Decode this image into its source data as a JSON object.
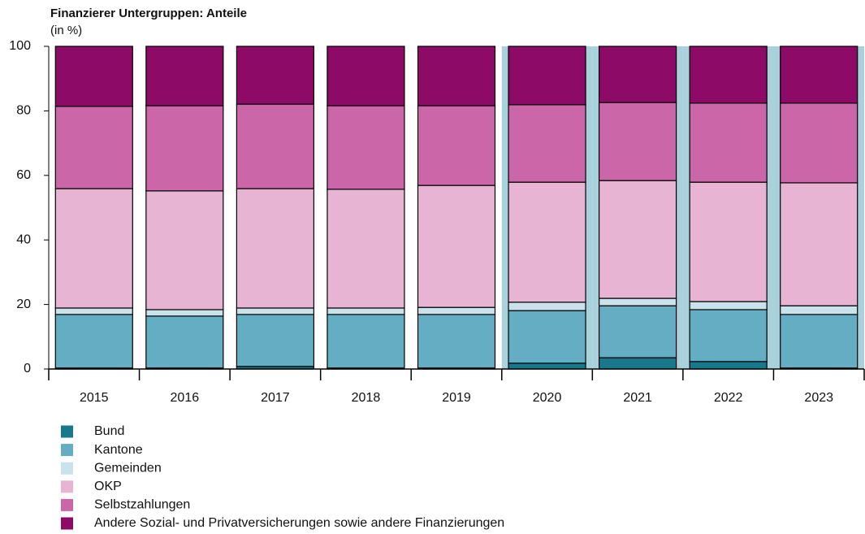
{
  "chart_data": {
    "type": "stacked_bar",
    "title": "Finanzierer Untergruppen: Anteile",
    "subtitle": "(in %)",
    "categories": [
      "2015",
      "2016",
      "2017",
      "2018",
      "2019",
      "2020",
      "2021",
      "2022",
      "2023"
    ],
    "series": [
      {
        "name": "Bund",
        "color": "#17798b",
        "values": [
          0.3,
          0.3,
          0.8,
          0.3,
          0.3,
          1.8,
          3.5,
          2.3,
          0.3
        ]
      },
      {
        "name": "Kantone",
        "color": "#64adc2",
        "values": [
          16.6,
          16.1,
          16.1,
          16.6,
          16.6,
          16.3,
          16.1,
          16.1,
          16.6
        ]
      },
      {
        "name": "Gemeinden",
        "color": "#c9e2eb",
        "values": [
          2.0,
          2.0,
          2.0,
          2.0,
          2.2,
          2.6,
          2.3,
          2.5,
          2.7
        ]
      },
      {
        "name": "OKP",
        "color": "#e8b4d4",
        "values": [
          37.0,
          36.8,
          37.0,
          36.8,
          37.8,
          37.2,
          36.5,
          37.0,
          38.1
        ]
      },
      {
        "name": "Selbstzahlungen",
        "color": "#cb67a8",
        "values": [
          25.5,
          26.4,
          26.2,
          25.9,
          24.7,
          24.0,
          24.2,
          24.5,
          24.7
        ]
      },
      {
        "name": "Andere Sozial- und Privatversicherungen sowie andere Finanzierungen",
        "color": "#8e0a67",
        "values": [
          18.6,
          18.4,
          17.9,
          18.4,
          18.4,
          18.1,
          17.4,
          17.6,
          17.6
        ]
      }
    ],
    "ylim": [
      0,
      100
    ],
    "yticks": [
      0,
      20,
      40,
      60,
      80,
      100
    ],
    "highlight_categories": [
      5,
      6,
      7,
      8
    ],
    "highlight_color": "#a9d1db"
  }
}
